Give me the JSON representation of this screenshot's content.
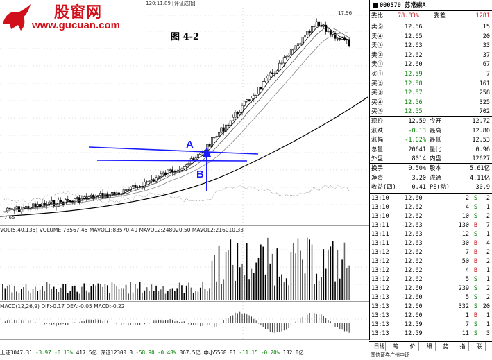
{
  "watermark": {
    "brand": "股窗网",
    "url": "www.gucuan.com"
  },
  "figure_title": "图 4-2",
  "ma_legend": "苏常柴A(日线 前复权) MA5:15.44 MA10:15.51 MA20:15.03 MA120:11.89 [评证成指]",
  "volume_legend": "VOL(5,40,135) VOLUME:78567.45 MAVOL1:83570.40 MAVOL2:248020.50 MAVOL2:216010.33",
  "macd_legend": "MACD(12,26,9) DIF:-0.17 DEA:-0.05 MACD:-0.22",
  "price_labels": {
    "high": "17.96",
    "low": "7.65"
  },
  "annotations": {
    "a": "A",
    "b": "B"
  },
  "status_bar": {
    "a": "上证3047.31",
    "a_change": "-3.97",
    "a_pct": "-0.13%",
    "a_amt": "417.5亿",
    "b": "深证12300.8",
    "b_change": "-58.90",
    "b_pct": "-0.48%",
    "b_amt": "367.5亿",
    "c": "中小5568.81",
    "c_change": "-11.15",
    "c_pct": "-0.20%",
    "c_amt": "132.0亿"
  },
  "panel": {
    "code": "000570 苏常柴A",
    "weibi_label": "委比",
    "weibi_value": "78.83%",
    "weicha_label": "委差",
    "weicha_value": "1281",
    "asks": [
      {
        "label": "卖⑤",
        "price": "12.66",
        "vol": "15"
      },
      {
        "label": "卖④",
        "price": "12.65",
        "vol": "20"
      },
      {
        "label": "卖③",
        "price": "12.63",
        "vol": "33"
      },
      {
        "label": "卖②",
        "price": "12.62",
        "vol": "37"
      },
      {
        "label": "卖①",
        "price": "12.60",
        "vol": "67"
      }
    ],
    "bids": [
      {
        "label": "买①",
        "price": "12.59",
        "vol": "7"
      },
      {
        "label": "买②",
        "price": "12.58",
        "vol": "161"
      },
      {
        "label": "买③",
        "price": "12.57",
        "vol": "258"
      },
      {
        "label": "买④",
        "price": "12.56",
        "vol": "325"
      },
      {
        "label": "买⑤",
        "price": "12.55",
        "vol": "702"
      }
    ],
    "quote": [
      {
        "l1": "现价",
        "v1": "12.59",
        "l2": "今开",
        "v2": "12.72"
      },
      {
        "l1": "涨跌",
        "v1": "-0.13",
        "l2": "最高",
        "v2": "12.80"
      },
      {
        "l1": "涨幅",
        "v1": "-1.02%",
        "l2": "最低",
        "v2": "12.53"
      },
      {
        "l1": "总量",
        "v1": "20641",
        "l2": "量比",
        "v2": "0.96"
      },
      {
        "l1": "外盘",
        "v1": "8014",
        "l2": "内盘",
        "v2": "12627"
      }
    ],
    "fin": [
      {
        "l1": "换手",
        "v1": "0.50%",
        "l2": "股本",
        "v2": "5.61亿"
      },
      {
        "l1": "净资",
        "v1": "3.20",
        "l2": "流通",
        "v2": "4.11亿"
      },
      {
        "l1": "收益(四)",
        "v1": "0.41",
        "l2": "PE(动)",
        "v2": "30.9"
      }
    ],
    "ticks": [
      {
        "t": "13:10",
        "p": "12.60",
        "v": "2",
        "s": "S",
        "n": "2"
      },
      {
        "t": "13:10",
        "p": "12.62",
        "v": "4",
        "s": "S",
        "n": "1"
      },
      {
        "t": "13:10",
        "p": "12.62",
        "v": "10",
        "s": "S",
        "n": "2"
      },
      {
        "t": "13:11",
        "p": "12.63",
        "v": "130",
        "s": "B",
        "n": "7"
      },
      {
        "t": "13:11",
        "p": "12.63",
        "v": "12",
        "s": "S",
        "n": "1"
      },
      {
        "t": "13:11",
        "p": "12.63",
        "v": "30",
        "s": "B",
        "n": "4"
      },
      {
        "t": "13:12",
        "p": "12.62",
        "v": "7",
        "s": "B",
        "n": "2"
      },
      {
        "t": "13:12",
        "p": "12.62",
        "v": "50",
        "s": "B",
        "n": "2"
      },
      {
        "t": "13:12",
        "p": "12.62",
        "v": "4",
        "s": "B",
        "n": "1"
      },
      {
        "t": "13:12",
        "p": "12.62",
        "v": "5",
        "s": "S",
        "n": "1"
      },
      {
        "t": "13:12",
        "p": "12.60",
        "v": "239",
        "s": "S",
        "n": "2"
      },
      {
        "t": "13:13",
        "p": "12.60",
        "v": "5",
        "s": "S",
        "n": "2"
      },
      {
        "t": "13:13",
        "p": "12.60",
        "v": "332",
        "s": "S",
        "n": "20"
      },
      {
        "t": "13:13",
        "p": "12.60",
        "v": "1",
        "s": "B",
        "n": "1"
      },
      {
        "t": "13:13",
        "p": "12.59",
        "v": "7",
        "s": "S",
        "n": "1"
      },
      {
        "t": "13:13",
        "p": "12.59",
        "v": "11",
        "s": "S",
        "n": "3"
      }
    ],
    "bottom_tabs": [
      "日线",
      "笔",
      "价",
      "细",
      "势",
      "指",
      "联"
    ],
    "bottom_left": "国信证券广州中证"
  },
  "colors": {
    "up": "#d0101a",
    "down": "#008000",
    "annotation": "#1a1aff"
  }
}
